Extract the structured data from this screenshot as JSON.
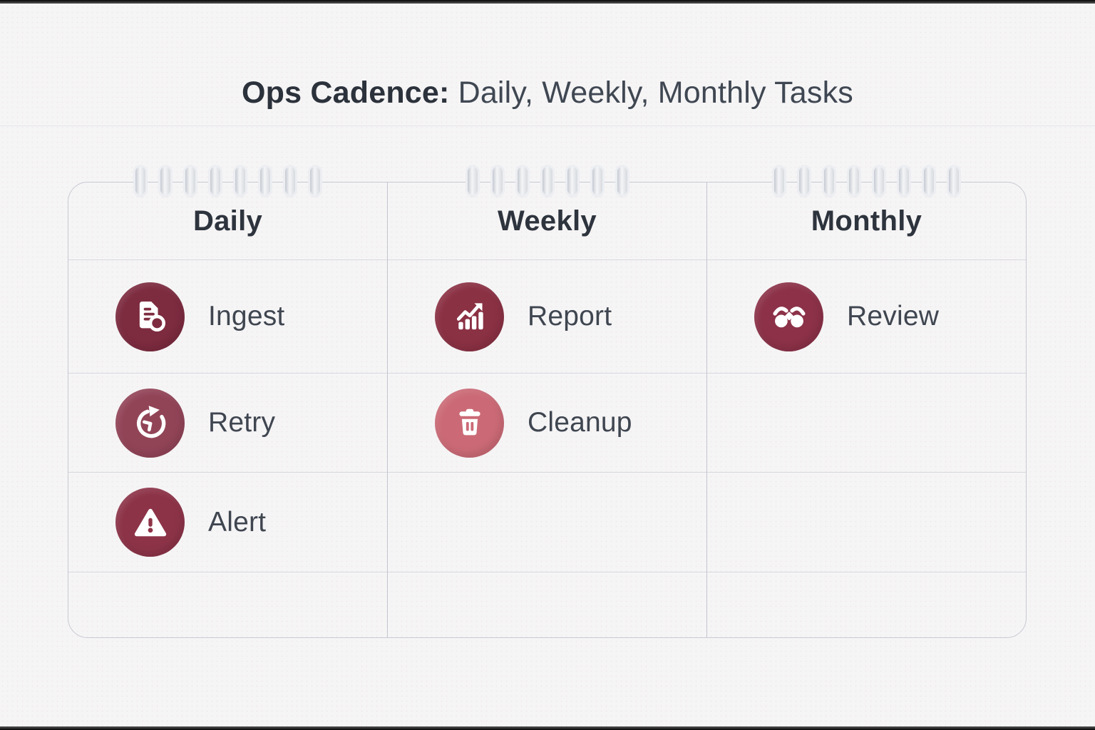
{
  "title": {
    "bold": "Ops Cadence:",
    "rest": "Daily, Weekly, Monthly Tasks"
  },
  "board": {
    "columns": [
      {
        "header": "Daily",
        "tasks": [
          {
            "label": "Ingest",
            "icon": "document-ingest-icon",
            "color": "#7d2b3f"
          },
          {
            "label": "Retry",
            "icon": "clock-retry-icon",
            "color": "#924457"
          },
          {
            "label": "Alert",
            "icon": "alert-triangle-icon",
            "color": "#8d3348"
          }
        ]
      },
      {
        "header": "Weekly",
        "tasks": [
          {
            "label": "Report",
            "icon": "report-chart-icon",
            "color": "#8b3144"
          },
          {
            "label": "Cleanup",
            "icon": "trash-cleanup-icon",
            "color": "#cb6a76"
          }
        ]
      },
      {
        "header": "Monthly",
        "tasks": [
          {
            "label": "Review",
            "icon": "binoculars-review-icon",
            "color": "#8c3148"
          }
        ]
      }
    ]
  },
  "colors": {
    "title_text": "#2c323b",
    "body_text": "#3f4650",
    "header_text": "#2e343d",
    "card_border": "#c7cad2",
    "row_divider": "#d6d8de",
    "column_divider": "#c3c7d0",
    "page_background": "#f6f5f6"
  }
}
